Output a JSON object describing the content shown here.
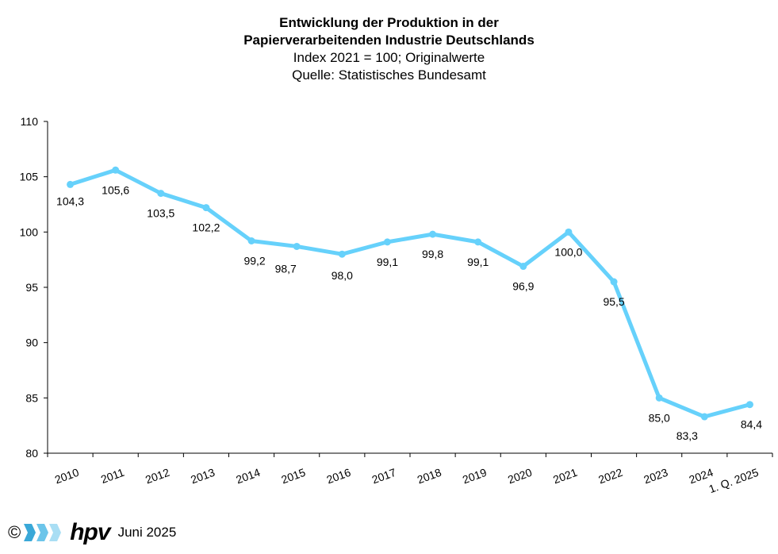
{
  "chart_data": {
    "type": "line",
    "title": "Entwicklung der Produktion in der",
    "title_line2": "Papierverarbeitenden Industrie Deutschlands",
    "subtitle": "Index 2021 = 100; Originalwerte",
    "source": "Quelle: Statistisches Bundesamt",
    "categories": [
      "2010",
      "2011",
      "2012",
      "2013",
      "2014",
      "2015",
      "2016",
      "2017",
      "2018",
      "2019",
      "2020",
      "2021",
      "2022",
      "2023",
      "2024",
      "1. Q. 2025"
    ],
    "series": [
      {
        "values": [
          104.3,
          105.6,
          103.5,
          102.2,
          99.2,
          98.7,
          98.0,
          99.1,
          99.8,
          99.1,
          96.9,
          100.0,
          95.5,
          85.0,
          83.3,
          84.4
        ],
        "labels": [
          "104,3",
          "105,6",
          "103,5",
          "102,2",
          "99,2",
          "98,7",
          "98,0",
          "99,1",
          "99,8",
          "99,1",
          "96,9",
          "100,0",
          "95,5",
          "85,0",
          "83,3",
          "84,4"
        ]
      }
    ],
    "ylim": [
      80,
      110
    ],
    "yticks": [
      "80",
      "85",
      "90",
      "95",
      "100",
      "105",
      "110"
    ],
    "grid": false,
    "line_color": "#66d1fb"
  },
  "footer": {
    "copyright": "©",
    "logo": "hpv",
    "date": "Juni 2025",
    "logo_colors": [
      "#3aa8d8",
      "#6cc5ea",
      "#a9def4"
    ]
  }
}
